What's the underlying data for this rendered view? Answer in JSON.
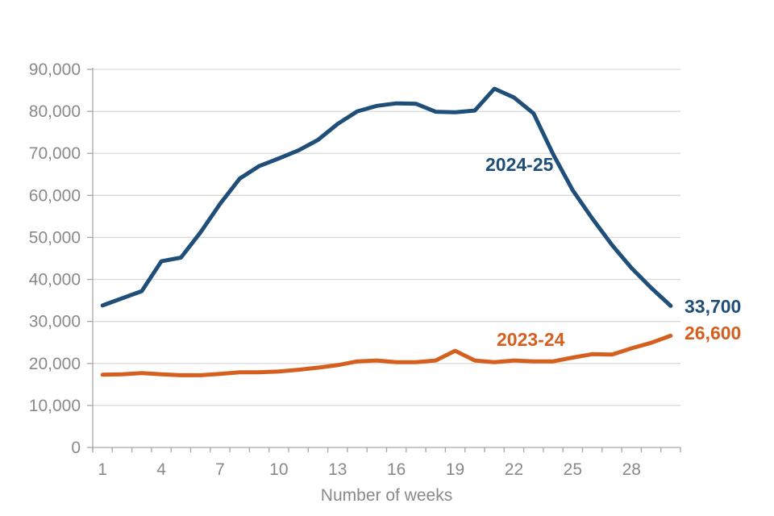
{
  "chart_data": {
    "type": "line",
    "title": "",
    "xlabel": "Number of weeks",
    "ylabel": "",
    "x": [
      1,
      2,
      3,
      4,
      5,
      6,
      7,
      8,
      9,
      10,
      11,
      12,
      13,
      14,
      15,
      16,
      17,
      18,
      19,
      20,
      21,
      22,
      23,
      24,
      25,
      26,
      27,
      28,
      29,
      30
    ],
    "x_tick_weeks": [
      1,
      4,
      7,
      10,
      13,
      16,
      19,
      22,
      25,
      28
    ],
    "x_tick_labels": [
      "1",
      "4",
      "7",
      "10",
      "13",
      "16",
      "19",
      "22",
      "25",
      "28"
    ],
    "y_ticks": [
      0,
      10000,
      20000,
      30000,
      40000,
      50000,
      60000,
      70000,
      80000,
      90000
    ],
    "y_tick_labels": [
      "0",
      "10,000",
      "20,000",
      "30,000",
      "40,000",
      "50,000",
      "60,000",
      "70,000",
      "80,000",
      "90,000"
    ],
    "ylim": [
      0,
      90000
    ],
    "grid": "horizontal",
    "legend_position": "inline-labels",
    "colors": {
      "axis_line": "#a6a6a6",
      "gridline": "#d9d9d9",
      "axis_text": "#898989"
    },
    "series": [
      {
        "name": "2024-25",
        "color": "#1f4e79",
        "end_label": "33,700",
        "values": [
          33800,
          35500,
          37200,
          44300,
          45200,
          51200,
          58000,
          64000,
          67000,
          68800,
          70700,
          73200,
          77000,
          80000,
          81300,
          81900,
          81800,
          79900,
          79800,
          80200,
          85400,
          83300,
          79500,
          69800,
          61200,
          54500,
          48200,
          42700,
          38000,
          33700
        ]
      },
      {
        "name": "2023-24",
        "color": "#d55f1e",
        "end_label": "26,600",
        "values": [
          17300,
          17400,
          17700,
          17400,
          17200,
          17200,
          17500,
          17900,
          17900,
          18100,
          18500,
          19000,
          19600,
          20500,
          20700,
          20300,
          20300,
          20700,
          23000,
          20700,
          20300,
          20700,
          20500,
          20500,
          21400,
          22200,
          22100,
          23600,
          24900,
          26600
        ]
      }
    ]
  }
}
